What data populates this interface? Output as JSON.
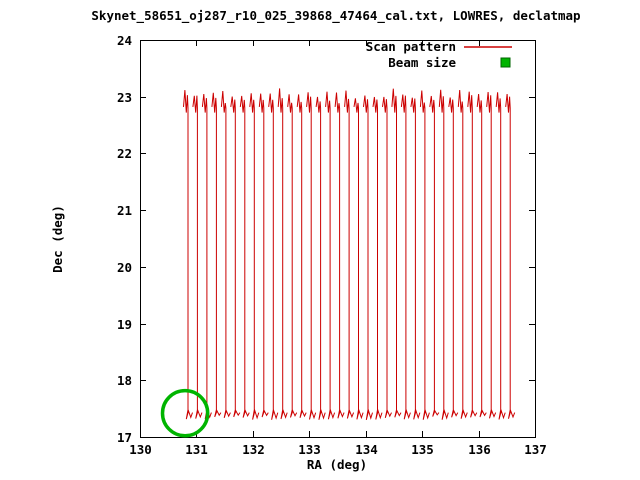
{
  "chart_data": {
    "type": "line",
    "title": "Skynet_58651_oj287_r10_025_39868_47464_cal.txt, LOWRES, declatmap",
    "xlabel": "RA (deg)",
    "ylabel": "Dec (deg)",
    "xlim": [
      130,
      137
    ],
    "ylim": [
      17,
      24
    ],
    "xticks": [
      130,
      131,
      132,
      133,
      134,
      135,
      136,
      137
    ],
    "yticks": [
      17,
      18,
      19,
      20,
      21,
      22,
      23,
      24
    ],
    "grid": false,
    "legend_position": "top-right-inside",
    "series": [
      {
        "name": "Scan pattern",
        "color": "#cc0000",
        "style": "line",
        "description": "Declination raster scan: ~35 closely spaced vertical sweeps in Dec with turnaround hooks at both ends",
        "scan": {
          "ra_start": 130.84,
          "ra_end": 136.55,
          "n_columns": 35,
          "dec_bottom": 17.48,
          "dec_top": 22.8,
          "hook_top_max": 23.15,
          "hook_bottom_min": 17.3
        }
      },
      {
        "name": "Beam size",
        "color": "#00b400",
        "style": "circle-outline",
        "center": [
          130.8,
          17.42
        ],
        "radius_deg": 0.4
      }
    ]
  },
  "layout_colors": {
    "axis": "#000000",
    "background": "#ffffff",
    "legend_marker_stroke": "#006600"
  }
}
